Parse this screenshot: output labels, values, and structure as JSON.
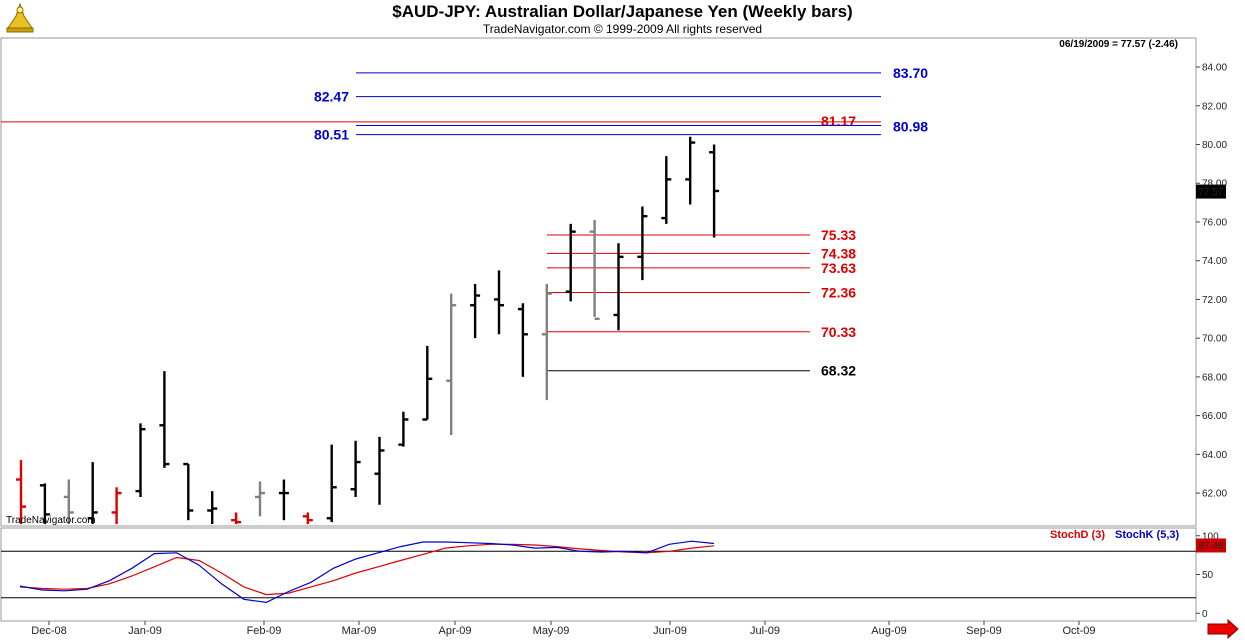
{
  "header": {
    "title": "$AUD-JPY:  Australian Dollar/Japanese Yen  (Weekly bars)",
    "copyright": "TradeNavigator.com © 1999-2009 All rights reserved",
    "status": "06/19/2009 = 77.57 (-2.46)",
    "watermark": "TradeNavigator.com"
  },
  "colors": {
    "blue_level": "#0000cc",
    "red_level": "#dd0000",
    "black_level": "#000000",
    "bar_black": "#000000",
    "bar_gray": "#808080",
    "bar_red": "#dd0000",
    "stoch_d": "#dd0000",
    "stoch_k": "#0000cc"
  },
  "chart_data": [
    {
      "type": "ohlc",
      "ylim": [
        60.3,
        85.5
      ],
      "yticks": [
        "62.00",
        "64.00",
        "66.00",
        "68.00",
        "70.00",
        "72.00",
        "74.00",
        "76.00",
        "78.00",
        "80.00",
        "82.00",
        "84.00"
      ],
      "xticks": [
        "Dec-08",
        "Jan-09",
        "Feb-09",
        "Mar-09",
        "Apr-09",
        "May-09",
        "Jun-09",
        "Jul-09",
        "Aug-09",
        "Sep-09",
        "Oct-09"
      ],
      "last_value_label": "77.57",
      "bars": [
        {
          "week": 0,
          "open": 62.7,
          "high": 63.7,
          "low": 60.4,
          "close": 61.3,
          "color": "red"
        },
        {
          "week": 1,
          "open": 62.4,
          "high": 62.5,
          "low": 60.4,
          "close": 60.9,
          "color": "black"
        },
        {
          "week": 2,
          "open": 61.8,
          "high": 62.7,
          "low": 60.4,
          "close": 61.0,
          "color": "gray"
        },
        {
          "week": 3,
          "open": 60.7,
          "high": 63.6,
          "low": 60.4,
          "close": 61.0,
          "color": "black"
        },
        {
          "week": 4,
          "open": 61.0,
          "high": 62.3,
          "low": 60.4,
          "close": 62.0,
          "color": "red"
        },
        {
          "week": 5,
          "open": 62.1,
          "high": 65.6,
          "low": 61.8,
          "close": 65.3,
          "color": "black"
        },
        {
          "week": 6,
          "open": 65.5,
          "high": 68.3,
          "low": 63.3,
          "close": 63.5,
          "color": "black"
        },
        {
          "week": 7,
          "open": 63.5,
          "high": 63.5,
          "low": 60.6,
          "close": 61.1,
          "color": "black"
        },
        {
          "week": 8,
          "open": 61.1,
          "high": 62.1,
          "low": 60.4,
          "close": 61.2,
          "color": "black"
        },
        {
          "week": 9,
          "open": 60.6,
          "high": 61.0,
          "low": 60.4,
          "close": 60.5,
          "color": "red"
        },
        {
          "week": 10,
          "open": 61.8,
          "high": 62.6,
          "low": 60.8,
          "close": 62.0,
          "color": "gray"
        },
        {
          "week": 11,
          "open": 62.0,
          "high": 62.7,
          "low": 60.6,
          "close": 62.0,
          "color": "black"
        },
        {
          "week": 12,
          "open": 60.8,
          "high": 61.0,
          "low": 60.4,
          "close": 60.6,
          "color": "red"
        },
        {
          "week": 13,
          "open": 60.7,
          "high": 64.5,
          "low": 60.5,
          "close": 62.3,
          "color": "black"
        },
        {
          "week": 14,
          "open": 62.2,
          "high": 64.7,
          "low": 61.8,
          "close": 63.6,
          "color": "black"
        },
        {
          "week": 15,
          "open": 63.0,
          "high": 64.9,
          "low": 61.4,
          "close": 64.2,
          "color": "black"
        },
        {
          "week": 16,
          "open": 64.5,
          "high": 66.2,
          "low": 64.4,
          "close": 65.8,
          "color": "black"
        },
        {
          "week": 17,
          "open": 65.8,
          "high": 69.6,
          "low": 65.8,
          "close": 67.9,
          "color": "black"
        },
        {
          "week": 18,
          "open": 67.8,
          "high": 72.3,
          "low": 65.0,
          "close": 71.7,
          "color": "gray"
        },
        {
          "week": 19,
          "open": 71.7,
          "high": 72.8,
          "low": 70.0,
          "close": 72.2,
          "color": "black"
        },
        {
          "week": 20,
          "open": 72.0,
          "high": 73.5,
          "low": 70.2,
          "close": 71.7,
          "color": "black"
        },
        {
          "week": 21,
          "open": 71.5,
          "high": 71.8,
          "low": 68.0,
          "close": 70.2,
          "color": "black"
        },
        {
          "week": 22,
          "open": 70.2,
          "high": 72.8,
          "low": 66.8,
          "close": 72.3,
          "color": "gray"
        },
        {
          "week": 23,
          "open": 72.4,
          "high": 75.9,
          "low": 71.9,
          "close": 75.5,
          "color": "black"
        },
        {
          "week": 24,
          "open": 75.5,
          "high": 76.1,
          "low": 71.1,
          "close": 71.0,
          "color": "gray"
        },
        {
          "week": 25,
          "open": 71.2,
          "high": 74.9,
          "low": 70.4,
          "close": 74.2,
          "color": "black"
        },
        {
          "week": 26,
          "open": 74.2,
          "high": 76.8,
          "low": 73.0,
          "close": 76.3,
          "color": "black"
        },
        {
          "week": 27,
          "open": 76.2,
          "high": 79.4,
          "low": 75.9,
          "close": 78.2,
          "color": "black"
        },
        {
          "week": 28,
          "open": 78.2,
          "high": 80.4,
          "low": 76.9,
          "close": 80.1,
          "color": "black"
        },
        {
          "week": 29,
          "open": 79.6,
          "high": 80.0,
          "low": 75.2,
          "close": 77.6,
          "color": "black"
        }
      ],
      "levels": [
        {
          "value": 83.7,
          "label": "83.70",
          "color": "blue",
          "label_side": "right"
        },
        {
          "value": 82.47,
          "label": "82.47",
          "color": "blue",
          "label_side": "left"
        },
        {
          "value": 81.17,
          "label": "81.17",
          "color": "red",
          "label_side": "right"
        },
        {
          "value": 80.98,
          "label": "80.98",
          "color": "blue",
          "label_side": "right"
        },
        {
          "value": 80.51,
          "label": "80.51",
          "color": "blue",
          "label_side": "left"
        },
        {
          "value": 75.33,
          "label": "75.33",
          "color": "red",
          "label_side": "right"
        },
        {
          "value": 74.38,
          "label": "74.38",
          "color": "red",
          "label_side": "right"
        },
        {
          "value": 73.63,
          "label": "73.63",
          "color": "red",
          "label_side": "right"
        },
        {
          "value": 72.36,
          "label": "72.36",
          "color": "red",
          "label_side": "right"
        },
        {
          "value": 70.33,
          "label": "70.33",
          "color": "red",
          "label_side": "right"
        },
        {
          "value": 68.32,
          "label": "68.32",
          "color": "black",
          "label_side": "right"
        }
      ]
    },
    {
      "type": "line",
      "ylim": [
        -10,
        110
      ],
      "yticks": [
        "0",
        "50",
        "100"
      ],
      "reference_lines": [
        80,
        20
      ],
      "last_value_label": "87.46",
      "series": [
        {
          "name": "StochD (3)",
          "values": [
            34,
            32,
            31,
            32,
            38,
            48,
            60,
            72,
            68,
            52,
            34,
            24,
            26,
            34,
            42,
            52,
            60,
            68,
            76,
            84,
            87,
            89,
            89,
            88,
            86,
            83,
            81,
            79,
            78,
            80,
            84,
            87
          ]
        },
        {
          "name": "StochK (5,3)",
          "values": [
            35,
            30,
            29,
            31,
            42,
            58,
            77,
            78,
            62,
            38,
            18,
            14,
            28,
            40,
            58,
            70,
            78,
            86,
            92,
            92,
            91,
            90,
            88,
            84,
            85,
            80,
            79,
            80,
            78,
            89,
            93,
            90
          ]
        }
      ]
    }
  ]
}
